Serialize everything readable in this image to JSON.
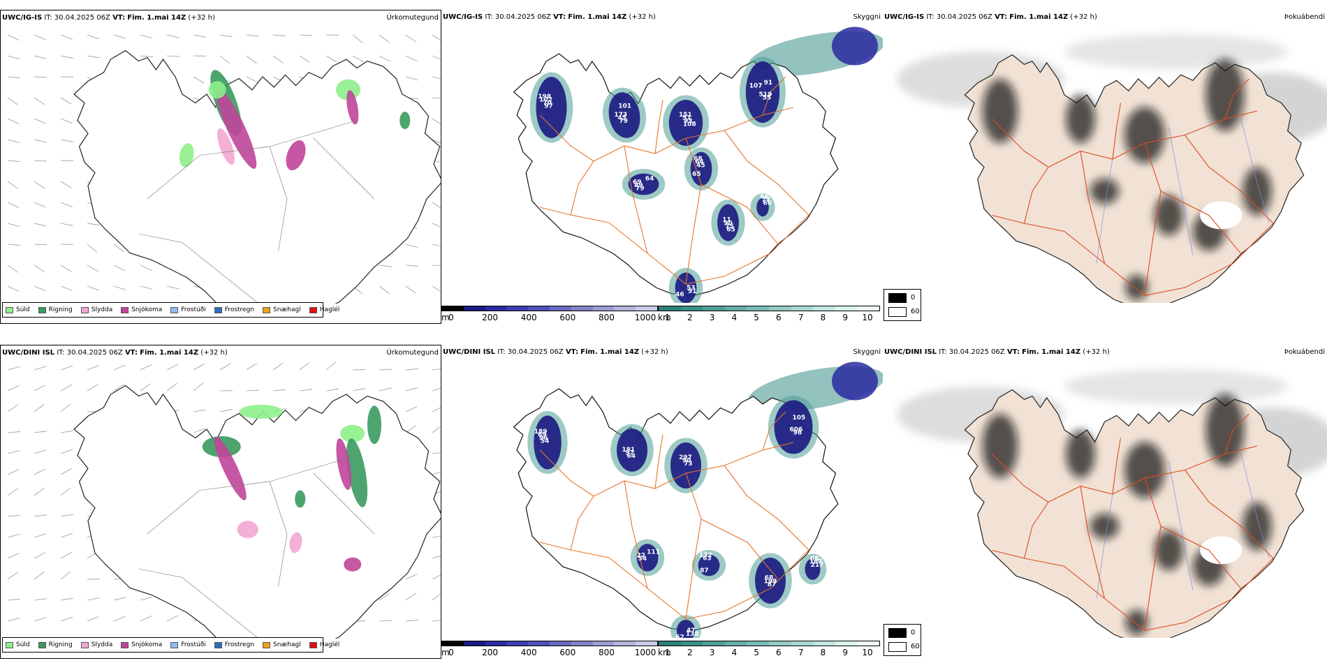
{
  "colors": {
    "suld": "#8ef08a",
    "rigning": "#3a9a5e",
    "slydda": "#f3a6d3",
    "snjokoma": "#c0459a",
    "frostudi": "#8fbcf0",
    "frostregn": "#2e6fc4",
    "snaehagl": "#f0a020",
    "hagl": "#e01010",
    "road": "#e8742a",
    "coast": "#222222",
    "land_ppt": "#f1e2d5",
    "river": "#7d8ff0"
  },
  "rows": [
    {
      "precip": {
        "model": "UWC/IG-IS",
        "it_label": "IT:",
        "it": "30.04.2025 06Z",
        "vt_label": "VT:",
        "vt": "Fim. 1.mai 14Z",
        "lead": "(+32 h)",
        "title": "Úrkomutegund"
      },
      "vis": {
        "model": "UWC/IG-IS",
        "it_label": "IT:",
        "it": "30.04.2025 06Z",
        "vt_label": "VT:",
        "vt": "Fim. 1.mai 14Z",
        "lead": "(+32 h)",
        "title": "Skyggni",
        "labels": [
          "198",
          "173",
          "151",
          "519",
          "64",
          "65",
          "11",
          "66",
          "53",
          "102",
          "45",
          "51",
          "55",
          "69",
          "68",
          "90",
          "77",
          "91",
          "70",
          "79",
          "93",
          "91",
          "89",
          "64",
          "75",
          "60",
          "46",
          "97",
          "101",
          "108",
          "107",
          "79",
          "45",
          "65"
        ]
      },
      "fog": {
        "model": "UWC/IG-IS",
        "it_label": "IT:",
        "it": "30.04.2025 06Z",
        "vt_label": "VT:",
        "vt": "Fim. 1.mai 14Z",
        "lead": "(+32 h)",
        "title": "Þokuábendi"
      }
    },
    {
      "precip": {
        "model": "UWC/DINI ISL",
        "it_label": "IT:",
        "it": "30.04.2025 06Z",
        "vt_label": "VT:",
        "vt": "Fim. 1.mai 14Z",
        "lead": "(+32 h)",
        "title": "Úrkomutegund"
      },
      "vis": {
        "model": "UWC/DINI ISL",
        "it_label": "IT:",
        "it": "30.04.2025 06Z",
        "vt_label": "VT:",
        "vt": "Fim. 1.mai 14Z",
        "lead": "(+32 h)",
        "title": "Skyggni",
        "labels": [
          "189",
          "181",
          "297",
          "606",
          "111",
          "87",
          "68",
          "68",
          "47",
          "69",
          "97",
          "90",
          "98",
          "22",
          "132",
          "199",
          "167",
          "138",
          "96",
          "64",
          "73",
          "105",
          "54",
          "63",
          "87",
          "217",
          "62",
          "54"
        ]
      },
      "fog": {
        "model": "UWC/DINI ISL",
        "it_label": "IT:",
        "it": "30.04.2025 06Z",
        "vt_label": "VT:",
        "vt": "Fim. 1.mai 14Z",
        "lead": "(+32 h)",
        "title": "Þokuábendi"
      }
    }
  ],
  "precip_legend": [
    {
      "label": "Súld",
      "color": "#8ef08a"
    },
    {
      "label": "Rigning",
      "color": "#3a9a5e"
    },
    {
      "label": "Slydda",
      "color": "#f3a6d3"
    },
    {
      "label": "Snjókoma",
      "color": "#c0459a"
    },
    {
      "label": "Frostúði",
      "color": "#8fbcf0"
    },
    {
      "label": "Frostregn",
      "color": "#2e6fc4"
    },
    {
      "label": "Snæhagl",
      "color": "#f0a020"
    },
    {
      "label": "Haglél",
      "color": "#e01010"
    }
  ],
  "height_scale": {
    "unit": "m",
    "ticks": [
      "0",
      "200",
      "400",
      "600",
      "800",
      "1000"
    ],
    "colors": [
      "#000000",
      "#1a1a80",
      "#2a2aa0",
      "#3d3db0",
      "#5050b8",
      "#6a6ac0",
      "#8484c8",
      "#9c9cd4",
      "#b4b4de",
      "#ccccea"
    ]
  },
  "vis_scale": {
    "unit": "km",
    "ticks": [
      "1",
      "2",
      "3",
      "4",
      "5",
      "6",
      "7",
      "8",
      "9",
      "10"
    ],
    "colors": [
      "#2a7f78",
      "#3c8f88",
      "#4f9e97",
      "#63ada6",
      "#7abcb5",
      "#92cbc4",
      "#aad8d2",
      "#c2e5df",
      "#daf1ec",
      "#f0faf8"
    ]
  },
  "fog_scale": {
    "dark_label": "0",
    "light_label": "60"
  }
}
